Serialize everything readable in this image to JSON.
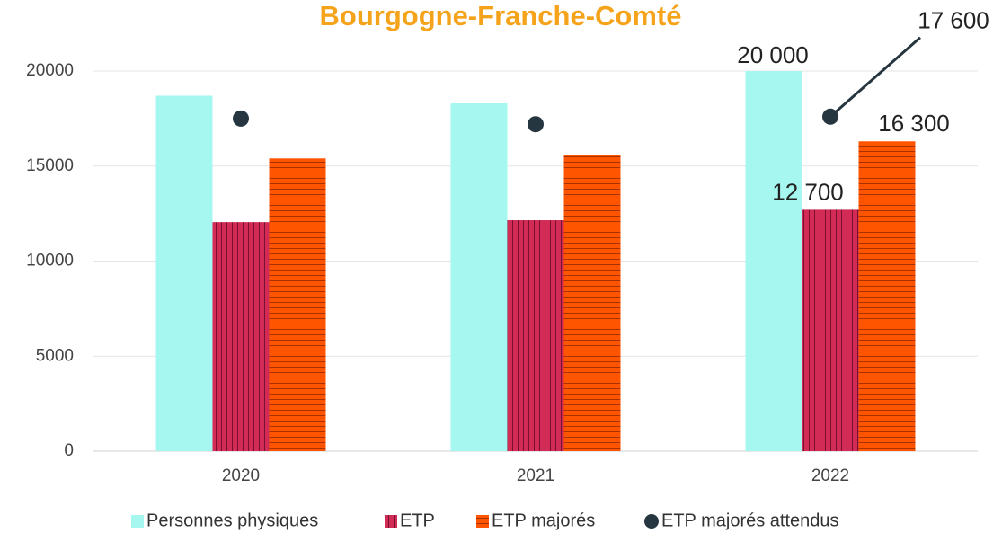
{
  "chart_data": {
    "type": "bar",
    "title": "Bourgogne-Franche-Comté",
    "categories": [
      "2020",
      "2021",
      "2022"
    ],
    "series": [
      {
        "name": "Personnes physiques",
        "color": "#a6f7f0",
        "values": [
          18700,
          18300,
          20000
        ],
        "value_labels": [
          null,
          null,
          "20 000"
        ]
      },
      {
        "name": "ETP",
        "color": "#d22b55",
        "pattern": "vertical",
        "values": [
          12050,
          12150,
          12700
        ],
        "value_labels": [
          null,
          null,
          "12 700"
        ]
      },
      {
        "name": "ETP majorés",
        "color": "#ff5500",
        "pattern": "horizontal",
        "values": [
          15400,
          15600,
          16300
        ],
        "value_labels": [
          null,
          null,
          "16 300"
        ]
      },
      {
        "name": "ETP majorés attendus",
        "color": "#263640",
        "type": "scatter",
        "values": [
          17500,
          17200,
          17600
        ],
        "value_labels": [
          null,
          null,
          "17 600"
        ]
      }
    ],
    "ylim": [
      0,
      20000
    ],
    "yticks": [
      0,
      5000,
      10000,
      15000,
      20000
    ],
    "grid": true,
    "legend": "bottom"
  }
}
